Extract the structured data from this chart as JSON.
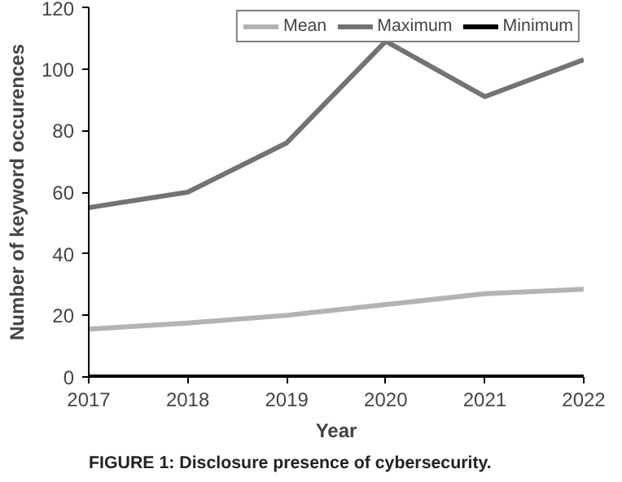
{
  "chart_data": {
    "type": "line",
    "xlabel": "Year",
    "ylabel": "Number of keyword occurences",
    "x": [
      2017,
      2018,
      2019,
      2020,
      2021,
      2022
    ],
    "series": [
      {
        "name": "Mean",
        "color": "#b3b3b3",
        "values": [
          15.5,
          17.5,
          20,
          23.5,
          27,
          28.5
        ]
      },
      {
        "name": "Maximum",
        "color": "#737373",
        "values": [
          55,
          60,
          76,
          109,
          91,
          103
        ]
      },
      {
        "name": "Minimum",
        "color": "#000000",
        "values": [
          0,
          0,
          0,
          0,
          0,
          0
        ]
      }
    ],
    "xlim": [
      2017,
      2022
    ],
    "xticks": [
      2017,
      2018,
      2019,
      2020,
      2021,
      2022
    ],
    "ylim": [
      0,
      120
    ],
    "yticks": [
      0,
      20,
      40,
      60,
      80,
      100,
      120
    ],
    "grid": false,
    "legend": "top right",
    "marker": "none",
    "line_style": "solid",
    "annotations": [
      "FIGURE 1: Disclosure presence of cybersecurity."
    ]
  }
}
